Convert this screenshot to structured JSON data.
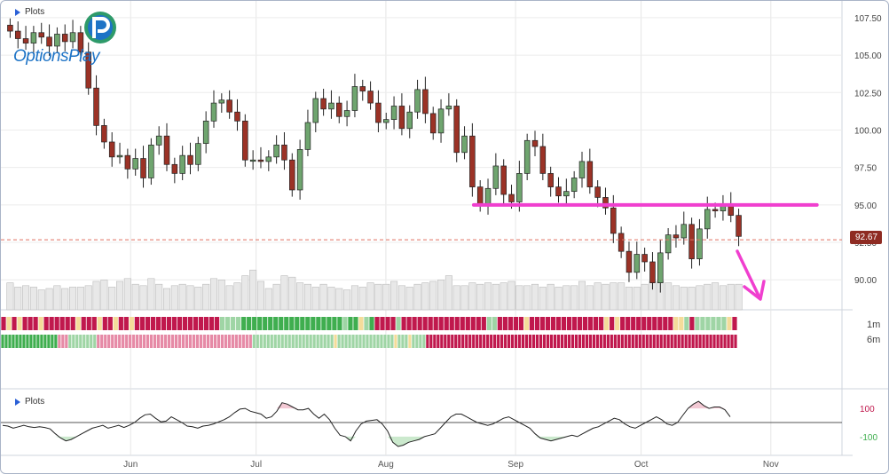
{
  "panels": {
    "main_title": "Plots",
    "osc_title": "Plots"
  },
  "logo": {
    "text": "OptionsPlay"
  },
  "sentiment_labels": {
    "row1": "1m",
    "row2": "6m"
  },
  "current_price_tag": "92.67",
  "colors": {
    "up_candle": "#6fa56f",
    "down_candle": "#9b3226",
    "resistance_line": "#f03fcf",
    "arrow": "#f03fcf",
    "price_dash": "#e07060",
    "volume_bar": "#e8e8e8",
    "sentiment": {
      "strong_bear": "#c0184d",
      "bear": "#e68aa6",
      "neutral": "#f4dc9a",
      "bull": "#9fd5a5",
      "strong_bull": "#3fae4f"
    }
  },
  "chart_data": [
    {
      "type": "candlestick",
      "y_ticks": [
        "107.50",
        "105.00",
        "102.50",
        "100.00",
        "97.50",
        "95.00",
        "92.50",
        "90.00"
      ],
      "ylim": [
        88.0,
        108.5
      ],
      "x_tick_labels": [
        "Jun",
        "Jul",
        "Aug",
        "Sep",
        "Oct",
        "Nov"
      ],
      "x_tick_dates": [
        "2019-06-01",
        "2019-07-01",
        "2019-08-01",
        "2019-09-01",
        "2019-10-01",
        "2019-11-01"
      ],
      "date_range": [
        "2019-05-01",
        "2019-11-18"
      ],
      "current_price": 92.67,
      "resistance_level": 95.0,
      "resistance_span": [
        "2019-08-22",
        "2019-11-12"
      ],
      "candles_close": [
        106.6,
        106.1,
        105.8,
        106.5,
        106.2,
        105.6,
        106.4,
        105.9,
        106.5,
        105.2,
        102.8,
        100.3,
        99.2,
        98.2,
        98.3,
        97.4,
        98.1,
        96.8,
        99.0,
        99.6,
        97.7,
        97.1,
        98.3,
        97.7,
        99.1,
        100.6,
        101.8,
        102.0,
        101.2,
        100.6,
        98.0,
        98.0,
        97.9,
        98.2,
        99.0,
        98.0,
        96.0,
        98.7,
        100.5,
        102.1,
        101.4,
        101.8,
        100.9,
        101.3,
        102.9,
        102.6,
        101.8,
        100.5,
        100.7,
        101.6,
        100.1,
        101.2,
        102.7,
        101.1,
        99.8,
        101.4,
        101.6,
        98.5,
        99.6,
        96.2,
        95.0,
        96.1,
        97.6,
        95.7,
        95.2,
        97.1,
        99.3,
        98.9,
        97.1,
        96.2,
        95.6,
        95.9,
        96.8,
        97.9,
        96.2,
        95.5,
        94.8,
        93.1,
        91.9,
        90.5,
        91.7,
        91.2,
        89.8,
        91.8,
        93.0,
        92.8,
        93.7,
        91.4,
        93.4,
        94.7,
        94.6,
        95.0,
        94.3,
        92.9
      ],
      "volume": [
        19,
        16,
        17,
        16,
        14,
        15,
        17,
        15,
        16,
        16,
        17,
        20,
        21,
        16,
        20,
        22,
        18,
        17,
        22,
        18,
        15,
        17,
        18,
        17,
        16,
        18,
        22,
        21,
        17,
        19,
        24,
        28,
        20,
        15,
        18,
        24,
        23,
        19,
        18,
        16,
        18,
        16,
        15,
        14,
        17,
        16,
        19,
        18,
        18,
        20,
        17,
        16,
        18,
        19,
        20,
        21,
        24,
        17,
        17,
        19,
        18,
        19,
        18,
        19,
        20,
        17,
        17,
        18,
        16,
        18,
        16,
        17,
        17,
        20,
        17,
        19,
        18,
        19,
        19,
        16,
        16,
        18,
        20,
        20,
        19,
        17,
        16,
        16,
        17,
        18,
        19,
        17,
        18,
        18
      ],
      "sentiment_1m": [
        "strong_bear",
        "neutral",
        "strong_bear",
        "neutral",
        "strong_bear",
        "strong_bear",
        "strong_bear",
        "neutral",
        "strong_bear",
        "strong_bear",
        "strong_bear",
        "strong_bear",
        "strong_bear",
        "strong_bear",
        "neutral",
        "strong_bear",
        "strong_bear",
        "strong_bear",
        "neutral",
        "strong_bear",
        "strong_bear",
        "neutral",
        "strong_bear",
        "strong_bear",
        "neutral",
        "strong_bear",
        "strong_bear",
        "strong_bear",
        "strong_bear",
        "strong_bear",
        "strong_bear",
        "strong_bear",
        "strong_bear",
        "strong_bear",
        "strong_bear",
        "strong_bear",
        "strong_bear",
        "strong_bear",
        "strong_bear",
        "strong_bear",
        "strong_bear",
        "bull",
        "bull",
        "bull",
        "bull",
        "strong_bull",
        "strong_bull",
        "strong_bull",
        "strong_bull",
        "strong_bull",
        "strong_bull",
        "strong_bull",
        "strong_bull",
        "strong_bull",
        "strong_bull",
        "strong_bull",
        "strong_bull",
        "strong_bull",
        "strong_bull",
        "strong_bull",
        "strong_bull",
        "strong_bull",
        "strong_bull",
        "strong_bull",
        "bull",
        "strong_bull",
        "strong_bull",
        "neutral",
        "bull",
        "strong_bull",
        "strong_bear",
        "strong_bear",
        "strong_bear",
        "strong_bear",
        "bull",
        "strong_bear",
        "strong_bear",
        "strong_bear",
        "strong_bear",
        "strong_bear",
        "strong_bear",
        "strong_bear",
        "strong_bear",
        "strong_bear",
        "strong_bear",
        "strong_bear",
        "strong_bear",
        "strong_bear",
        "strong_bear",
        "strong_bear",
        "strong_bear",
        "bull",
        "bull",
        "strong_bear",
        "strong_bear",
        "strong_bear",
        "strong_bear",
        "strong_bear",
        "neutral",
        "strong_bear",
        "strong_bear",
        "strong_bear",
        "strong_bear",
        "strong_bear",
        "strong_bear",
        "strong_bear",
        "strong_bear",
        "strong_bear",
        "strong_bear",
        "strong_bear",
        "strong_bear",
        "strong_bear",
        "strong_bear",
        "neutral",
        "strong_bear",
        "neutral",
        "strong_bear",
        "strong_bear",
        "strong_bear",
        "strong_bear",
        "strong_bear",
        "strong_bear",
        "strong_bear",
        "strong_bear",
        "strong_bear",
        "strong_bear",
        "neutral",
        "neutral",
        "bull",
        "strong_bear",
        "bull",
        "bull",
        "bull",
        "bull",
        "bull",
        "bull",
        "neutral",
        "strong_bear"
      ],
      "sentiment_6m": [
        "strong_bull",
        "strong_bull",
        "strong_bull",
        "strong_bull",
        "strong_bull",
        "strong_bull",
        "strong_bull",
        "strong_bull",
        "strong_bull",
        "strong_bull",
        "strong_bull",
        "strong_bull",
        "strong_bull",
        "strong_bull",
        "strong_bull",
        "strong_bull",
        "bear",
        "bear",
        "bear",
        "bull",
        "bull",
        "bull",
        "bull",
        "bull",
        "bull",
        "bull",
        "bull",
        "bear",
        "bear",
        "bear",
        "bear",
        "bear",
        "bear",
        "bear",
        "bear",
        "bear",
        "bear",
        "bear",
        "bear",
        "bear",
        "bear",
        "bear",
        "bear",
        "bear",
        "bear",
        "bear",
        "bear",
        "bear",
        "bear",
        "bear",
        "bear",
        "bear",
        "bear",
        "bear",
        "bear",
        "bear",
        "bear",
        "bear",
        "bear",
        "bear",
        "bear",
        "bear",
        "bear",
        "bear",
        "bear",
        "bear",
        "bear",
        "bear",
        "bear",
        "bear",
        "bear",
        "bull",
        "bull",
        "bull",
        "bull",
        "bull",
        "bull",
        "bull",
        "bull",
        "bull",
        "bull",
        "bull",
        "bull",
        "bull",
        "bull",
        "bull",
        "bull",
        "bull",
        "bull",
        "bull",
        "bull",
        "bull",
        "bull",
        "bull",
        "neutral",
        "bull",
        "bull",
        "bull",
        "bull",
        "bull",
        "bull",
        "bull",
        "bull",
        "bull",
        "bull",
        "bull",
        "bull",
        "bull",
        "bull",
        "bull",
        "bull",
        "neutral",
        "bull",
        "bull",
        "bull",
        "neutral",
        "bull",
        "bull",
        "bull",
        "bull",
        "strong_bear",
        "strong_bear",
        "strong_bear",
        "strong_bear",
        "strong_bear",
        "strong_bear",
        "strong_bear",
        "strong_bear",
        "strong_bear",
        "strong_bear",
        "strong_bear",
        "strong_bear",
        "strong_bear",
        "strong_bear",
        "strong_bear",
        "strong_bear",
        "strong_bear",
        "strong_bear",
        "strong_bear",
        "strong_bear",
        "strong_bear",
        "strong_bear",
        "strong_bear",
        "strong_bear",
        "strong_bear",
        "strong_bear",
        "strong_bear",
        "strong_bear",
        "strong_bear",
        "strong_bear",
        "strong_bear",
        "strong_bear",
        "strong_bear",
        "strong_bear",
        "strong_bear",
        "strong_bear",
        "strong_bear",
        "strong_bear",
        "strong_bear",
        "strong_bear",
        "strong_bear",
        "strong_bear",
        "strong_bear",
        "strong_bear",
        "strong_bear",
        "strong_bear",
        "strong_bear",
        "strong_bear",
        "strong_bear",
        "strong_bear",
        "strong_bear",
        "strong_bear",
        "strong_bear",
        "strong_bear",
        "strong_bear",
        "strong_bear",
        "strong_bear",
        "strong_bear",
        "strong_bear",
        "strong_bear",
        "strong_bear",
        "strong_bear",
        "strong_bear",
        "strong_bear",
        "strong_bear",
        "strong_bear",
        "strong_bear",
        "strong_bear",
        "strong_bear",
        "strong_bear",
        "strong_bear",
        "strong_bear",
        "strong_bear",
        "strong_bear",
        "strong_bear",
        "strong_bear",
        "strong_bear",
        "strong_bear",
        "strong_bear",
        "strong_bear",
        "strong_bear",
        "strong_bear",
        "strong_bear",
        "strong_bear",
        "strong_bear",
        "strong_bear",
        "strong_bear",
        "strong_bear"
      ]
    },
    {
      "type": "line",
      "y_ticks": [
        "100",
        "-100"
      ],
      "ylim": [
        -220,
        220
      ],
      "values": [
        -20,
        -25,
        -40,
        -30,
        -20,
        -30,
        -35,
        -30,
        -35,
        -45,
        -80,
        -110,
        -130,
        -120,
        -100,
        -80,
        -60,
        -40,
        -30,
        -20,
        -40,
        -30,
        -20,
        -35,
        -20,
        0,
        30,
        55,
        60,
        30,
        5,
        10,
        40,
        20,
        0,
        -25,
        -30,
        -40,
        -25,
        -20,
        -10,
        5,
        20,
        40,
        70,
        95,
        100,
        80,
        70,
        60,
        30,
        40,
        80,
        140,
        130,
        110,
        90,
        90,
        100,
        60,
        30,
        60,
        20,
        -40,
        -90,
        -100,
        -130,
        -60,
        -10,
        10,
        15,
        20,
        -10,
        -60,
        -140,
        -170,
        -160,
        -140,
        -130,
        -120,
        -100,
        -90,
        -80,
        -40,
        0,
        40,
        60,
        60,
        40,
        20,
        0,
        -10,
        -20,
        -10,
        10,
        30,
        40,
        20,
        0,
        -20,
        -40,
        -80,
        -110,
        -120,
        -130,
        -120,
        -110,
        -100,
        -90,
        -100,
        -80,
        -60,
        -40,
        -30,
        -10,
        10,
        30,
        20,
        -10,
        -30,
        -40,
        -20,
        0,
        20,
        40,
        20,
        -10,
        -20,
        0,
        50,
        100,
        130,
        150,
        120,
        100,
        110,
        110,
        90,
        40
      ]
    }
  ]
}
